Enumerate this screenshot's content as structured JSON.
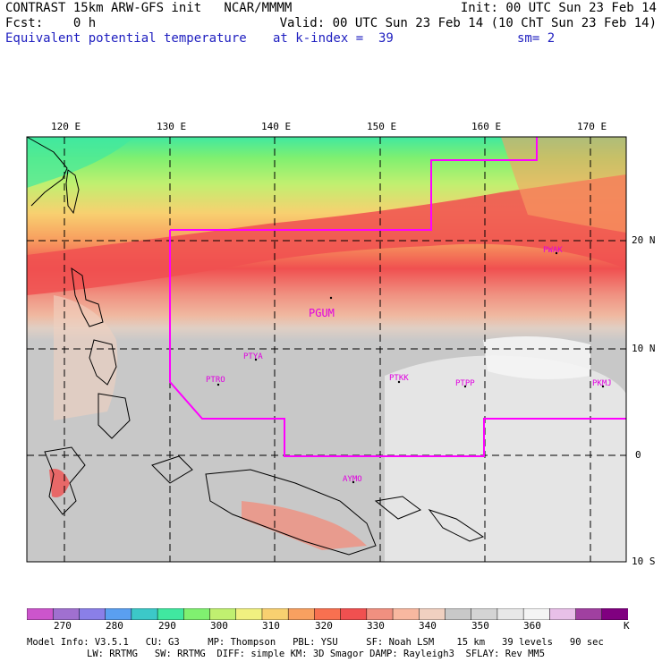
{
  "header": {
    "line1_left": "CONTRAST 15km ARW-GFS init   NCAR/MMMM",
    "line1_right": "Init: 00 UTC Sun 23 Feb 14",
    "line2_left": "Fcst:    0 h",
    "line2_right": "Valid: 00 UTC Sun 23 Feb 14 (10 ChT Sun 23 Feb 14)",
    "line3_field": "Equivalent potential temperature",
    "line3_level": "at k-index =  39",
    "line3_smooth": "sm= 2"
  },
  "map": {
    "lon_labels": [
      "120 E",
      "130 E",
      "140 E",
      "150 E",
      "160 E",
      "170 E"
    ],
    "lat_labels": [
      "20 N",
      "10 N",
      "0",
      "10 S"
    ],
    "stations": [
      "PWAK",
      "PGUM",
      "PTYA",
      "PTRO",
      "PTKK",
      "PTPP",
      "PKMJ",
      "AYMO"
    ]
  },
  "colorbar": {
    "colors": [
      "#cc55cc",
      "#a070d0",
      "#8a7fe8",
      "#5a9ff0",
      "#3cc8c8",
      "#40e8a0",
      "#80f070",
      "#c0f070",
      "#f0f080",
      "#f8d070",
      "#f8a060",
      "#f87050",
      "#f05050",
      "#f09080",
      "#f8b8a0",
      "#f0d0c0",
      "#c8c8c8",
      "#d4d4d4",
      "#e8e8e8",
      "#f4f4f4",
      "#e8c0e8",
      "#a040a0",
      "#800080"
    ],
    "tick_labels": [
      "270",
      "280",
      "290",
      "300",
      "310",
      "320",
      "330",
      "340",
      "350",
      "360"
    ],
    "unit": "K"
  },
  "footer": {
    "line1": "Model Info: V3.5.1   CU: G3     MP: Thompson   PBL: YSU     SF: Noah LSM    15 km   39 levels   90 sec",
    "line2": "LW: RRTMG   SW: RRTMG  DIFF: simple KM: 3D Smagor DAMP: Rayleigh3  SFLAY: Rev MM5"
  }
}
